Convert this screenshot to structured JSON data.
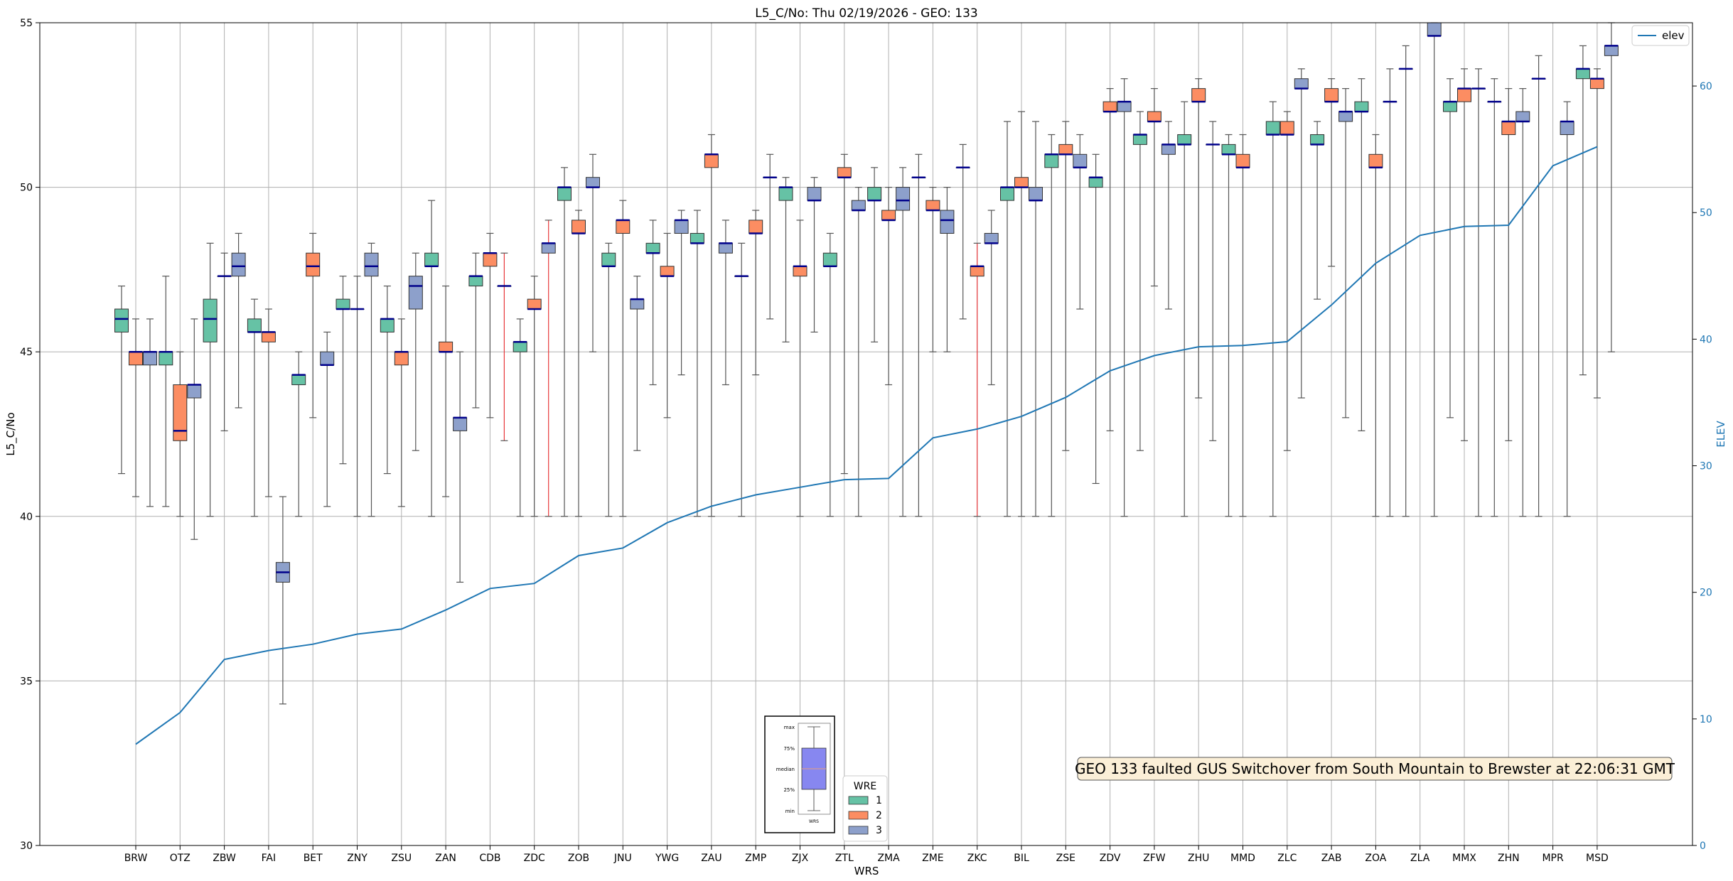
{
  "chart_data": {
    "type": "box",
    "title": "L5_C/No: Thu 02/19/2026 - GEO: 133",
    "xlabel": "WRS",
    "ylabel": "L5_C/No",
    "y2label": "ELEV",
    "ylim": [
      30,
      55
    ],
    "y2lim": [
      0,
      65
    ],
    "yticks": [
      "30",
      "35",
      "40",
      "45",
      "50",
      "55"
    ],
    "y2ticks": [
      "0",
      "10",
      "20",
      "30",
      "40",
      "50",
      "60"
    ],
    "grid": true,
    "categories": [
      "BRW",
      "OTZ",
      "ZBW",
      "FAI",
      "BET",
      "ZNY",
      "ZSU",
      "ZAN",
      "CDB",
      "ZDC",
      "ZOB",
      "JNU",
      "YWG",
      "ZAU",
      "ZMP",
      "ZJX",
      "ZTL",
      "ZMA",
      "ZME",
      "ZKC",
      "BIL",
      "ZSE",
      "ZDV",
      "ZFW",
      "ZHU",
      "MMD",
      "ZLC",
      "ZAB",
      "ZOA",
      "ZLA",
      "MMX",
      "ZHN",
      "MPR",
      "MSD"
    ],
    "wre_colors": {
      "1": "#66c2a5",
      "2": "#fc8d62",
      "3": "#8da0cb"
    },
    "boxes": [
      {
        "site": "BRW",
        "wre": 1,
        "min": 41.3,
        "q1": 45.6,
        "median": 46.0,
        "q3": 46.3,
        "max": 47.0
      },
      {
        "site": "BRW",
        "wre": 2,
        "min": 40.6,
        "q1": 44.6,
        "median": 45.0,
        "q3": 45.0,
        "max": 46.0
      },
      {
        "site": "BRW",
        "wre": 3,
        "min": 40.3,
        "q1": 44.6,
        "median": 45.0,
        "q3": 45.0,
        "max": 46.0
      },
      {
        "site": "OTZ",
        "wre": 1,
        "min": 40.3,
        "q1": 44.6,
        "median": 45.0,
        "q3": 45.0,
        "max": 47.3
      },
      {
        "site": "OTZ",
        "wre": 2,
        "min": 40.0,
        "q1": 42.3,
        "median": 42.6,
        "q3": 44.0,
        "max": 45.0
      },
      {
        "site": "OTZ",
        "wre": 3,
        "min": 39.3,
        "q1": 43.6,
        "median": 44.0,
        "q3": 44.0,
        "max": 46.0
      },
      {
        "site": "ZBW",
        "wre": 1,
        "min": 40.0,
        "q1": 45.3,
        "median": 46.0,
        "q3": 46.6,
        "max": 48.3
      },
      {
        "site": "ZBW",
        "wre": 2,
        "min": 42.6,
        "q1": 47.3,
        "median": 47.3,
        "q3": 47.3,
        "max": 48.0
      },
      {
        "site": "ZBW",
        "wre": 3,
        "min": 43.3,
        "q1": 47.3,
        "median": 47.6,
        "q3": 48.0,
        "max": 48.6
      },
      {
        "site": "FAI",
        "wre": 1,
        "min": 40.0,
        "q1": 45.6,
        "median": 45.6,
        "q3": 46.0,
        "max": 46.6
      },
      {
        "site": "FAI",
        "wre": 2,
        "min": 40.6,
        "q1": 45.3,
        "median": 45.6,
        "q3": 45.6,
        "max": 46.3
      },
      {
        "site": "FAI",
        "wre": 3,
        "min": 34.3,
        "q1": 38.0,
        "median": 38.3,
        "q3": 38.6,
        "max": 40.6
      },
      {
        "site": "BET",
        "wre": 1,
        "min": 40.0,
        "q1": 44.0,
        "median": 44.3,
        "q3": 44.3,
        "max": 45.0
      },
      {
        "site": "BET",
        "wre": 2,
        "min": 43.0,
        "q1": 47.3,
        "median": 47.6,
        "q3": 48.0,
        "max": 48.6
      },
      {
        "site": "BET",
        "wre": 3,
        "min": 40.3,
        "q1": 44.6,
        "median": 44.6,
        "q3": 45.0,
        "max": 45.6
      },
      {
        "site": "ZNY",
        "wre": 1,
        "min": 41.6,
        "q1": 46.3,
        "median": 46.3,
        "q3": 46.6,
        "max": 47.3
      },
      {
        "site": "ZNY",
        "wre": 2,
        "min": 40.0,
        "q1": 46.3,
        "median": 46.3,
        "q3": 46.3,
        "max": 47.3
      },
      {
        "site": "ZNY",
        "wre": 3,
        "min": 40.0,
        "q1": 47.3,
        "median": 47.6,
        "q3": 48.0,
        "max": 48.3
      },
      {
        "site": "ZSU",
        "wre": 1,
        "min": 41.3,
        "q1": 45.6,
        "median": 46.0,
        "q3": 46.0,
        "max": 47.0
      },
      {
        "site": "ZSU",
        "wre": 2,
        "min": 40.3,
        "q1": 44.6,
        "median": 45.0,
        "q3": 45.0,
        "max": 46.0
      },
      {
        "site": "ZSU",
        "wre": 3,
        "min": 42.0,
        "q1": 46.3,
        "median": 47.0,
        "q3": 47.3,
        "max": 48.0
      },
      {
        "site": "ZAN",
        "wre": 1,
        "min": 40.0,
        "q1": 47.6,
        "median": 47.6,
        "q3": 48.0,
        "max": 49.6
      },
      {
        "site": "ZAN",
        "wre": 2,
        "min": 40.6,
        "q1": 45.0,
        "median": 45.0,
        "q3": 45.3,
        "max": 47.0
      },
      {
        "site": "ZAN",
        "wre": 3,
        "min": 38.0,
        "q1": 42.6,
        "median": 43.0,
        "q3": 43.0,
        "max": 45.0
      },
      {
        "site": "CDB",
        "wre": 1,
        "min": 43.3,
        "q1": 47.0,
        "median": 47.3,
        "q3": 47.3,
        "max": 48.0
      },
      {
        "site": "CDB",
        "wre": 2,
        "min": 43.0,
        "q1": 47.6,
        "median": 48.0,
        "q3": 48.0,
        "max": 48.6
      },
      {
        "site": "CDB",
        "wre": 3,
        "min": 42.3,
        "q1": 47.0,
        "median": 47.0,
        "q3": 47.0,
        "max": 48.0,
        "faulted": true
      },
      {
        "site": "ZDC",
        "wre": 1,
        "min": 40.0,
        "q1": 45.0,
        "median": 45.3,
        "q3": 45.3,
        "max": 46.0
      },
      {
        "site": "ZDC",
        "wre": 2,
        "min": 40.0,
        "q1": 46.3,
        "median": 46.3,
        "q3": 46.6,
        "max": 47.3
      },
      {
        "site": "ZDC",
        "wre": 3,
        "min": 40.0,
        "q1": 48.0,
        "median": 48.3,
        "q3": 48.3,
        "max": 49.0,
        "faulted": true
      },
      {
        "site": "ZOB",
        "wre": 1,
        "min": 40.0,
        "q1": 49.6,
        "median": 50.0,
        "q3": 50.0,
        "max": 50.6
      },
      {
        "site": "ZOB",
        "wre": 2,
        "min": 40.0,
        "q1": 48.6,
        "median": 48.6,
        "q3": 49.0,
        "max": 49.3
      },
      {
        "site": "ZOB",
        "wre": 3,
        "min": 45.0,
        "q1": 50.0,
        "median": 50.0,
        "q3": 50.3,
        "max": 51.0
      },
      {
        "site": "JNU",
        "wre": 1,
        "min": 40.0,
        "q1": 47.6,
        "median": 47.6,
        "q3": 48.0,
        "max": 48.3
      },
      {
        "site": "JNU",
        "wre": 2,
        "min": 40.0,
        "q1": 48.6,
        "median": 49.0,
        "q3": 49.0,
        "max": 49.6
      },
      {
        "site": "JNU",
        "wre": 3,
        "min": 42.0,
        "q1": 46.3,
        "median": 46.6,
        "q3": 46.6,
        "max": 47.3
      },
      {
        "site": "YWG",
        "wre": 1,
        "min": 44.0,
        "q1": 48.0,
        "median": 48.0,
        "q3": 48.3,
        "max": 49.0
      },
      {
        "site": "YWG",
        "wre": 2,
        "min": 43.0,
        "q1": 47.3,
        "median": 47.3,
        "q3": 47.6,
        "max": 48.6
      },
      {
        "site": "YWG",
        "wre": 3,
        "min": 44.3,
        "q1": 48.6,
        "median": 49.0,
        "q3": 49.0,
        "max": 49.3
      },
      {
        "site": "ZAU",
        "wre": 1,
        "min": 40.0,
        "q1": 48.3,
        "median": 48.3,
        "q3": 48.6,
        "max": 49.3
      },
      {
        "site": "ZAU",
        "wre": 2,
        "min": 40.0,
        "q1": 50.6,
        "median": 51.0,
        "q3": 51.0,
        "max": 51.6
      },
      {
        "site": "ZAU",
        "wre": 3,
        "min": 44.0,
        "q1": 48.0,
        "median": 48.3,
        "q3": 48.3,
        "max": 49.0
      },
      {
        "site": "ZMP",
        "wre": 1,
        "min": 40.0,
        "q1": 47.3,
        "median": 47.3,
        "q3": 47.3,
        "max": 48.3
      },
      {
        "site": "ZMP",
        "wre": 2,
        "min": 44.3,
        "q1": 48.6,
        "median": 48.6,
        "q3": 49.0,
        "max": 49.3
      },
      {
        "site": "ZMP",
        "wre": 3,
        "min": 46.0,
        "q1": 50.3,
        "median": 50.3,
        "q3": 50.3,
        "max": 51.0
      },
      {
        "site": "ZJX",
        "wre": 1,
        "min": 45.3,
        "q1": 49.6,
        "median": 50.0,
        "q3": 50.0,
        "max": 50.3
      },
      {
        "site": "ZJX",
        "wre": 2,
        "min": 40.0,
        "q1": 47.3,
        "median": 47.6,
        "q3": 47.6,
        "max": 49.0
      },
      {
        "site": "ZJX",
        "wre": 3,
        "min": 45.6,
        "q1": 49.6,
        "median": 49.6,
        "q3": 50.0,
        "max": 50.3
      },
      {
        "site": "ZTL",
        "wre": 1,
        "min": 40.0,
        "q1": 47.6,
        "median": 47.6,
        "q3": 48.0,
        "max": 48.6
      },
      {
        "site": "ZTL",
        "wre": 2,
        "min": 41.3,
        "q1": 50.3,
        "median": 50.3,
        "q3": 50.6,
        "max": 51.0
      },
      {
        "site": "ZTL",
        "wre": 3,
        "min": 40.0,
        "q1": 49.3,
        "median": 49.3,
        "q3": 49.6,
        "max": 50.0
      },
      {
        "site": "ZMA",
        "wre": 1,
        "min": 45.3,
        "q1": 49.6,
        "median": 49.6,
        "q3": 50.0,
        "max": 50.6
      },
      {
        "site": "ZMA",
        "wre": 2,
        "min": 44.0,
        "q1": 49.0,
        "median": 49.0,
        "q3": 49.3,
        "max": 50.0
      },
      {
        "site": "ZMA",
        "wre": 3,
        "min": 40.0,
        "q1": 49.3,
        "median": 49.6,
        "q3": 50.0,
        "max": 50.6
      },
      {
        "site": "ZME",
        "wre": 1,
        "min": 40.0,
        "q1": 50.3,
        "median": 50.3,
        "q3": 50.3,
        "max": 51.0
      },
      {
        "site": "ZME",
        "wre": 2,
        "min": 45.0,
        "q1": 49.3,
        "median": 49.3,
        "q3": 49.6,
        "max": 50.0
      },
      {
        "site": "ZME",
        "wre": 3,
        "min": 45.0,
        "q1": 48.6,
        "median": 49.0,
        "q3": 49.3,
        "max": 50.0
      },
      {
        "site": "ZKC",
        "wre": 1,
        "min": 46.0,
        "q1": 50.6,
        "median": 50.6,
        "q3": 50.6,
        "max": 51.3
      },
      {
        "site": "ZKC",
        "wre": 2,
        "min": 40.0,
        "q1": 47.3,
        "median": 47.6,
        "q3": 47.6,
        "max": 48.3,
        "faulted": true
      },
      {
        "site": "ZKC",
        "wre": 3,
        "min": 44.0,
        "q1": 48.3,
        "median": 48.3,
        "q3": 48.6,
        "max": 49.3
      },
      {
        "site": "BIL",
        "wre": 1,
        "min": 40.0,
        "q1": 49.6,
        "median": 50.0,
        "q3": 50.0,
        "max": 52.0
      },
      {
        "site": "BIL",
        "wre": 2,
        "min": 40.0,
        "q1": 50.0,
        "median": 50.0,
        "q3": 50.3,
        "max": 52.3
      },
      {
        "site": "BIL",
        "wre": 3,
        "min": 40.0,
        "q1": 49.6,
        "median": 49.6,
        "q3": 50.0,
        "max": 52.0
      },
      {
        "site": "ZSE",
        "wre": 1,
        "min": 40.0,
        "q1": 50.6,
        "median": 51.0,
        "q3": 51.0,
        "max": 51.6
      },
      {
        "site": "ZSE",
        "wre": 2,
        "min": 42.0,
        "q1": 51.0,
        "median": 51.0,
        "q3": 51.3,
        "max": 52.0
      },
      {
        "site": "ZSE",
        "wre": 3,
        "min": 46.3,
        "q1": 50.6,
        "median": 50.6,
        "q3": 51.0,
        "max": 51.6
      },
      {
        "site": "ZDV",
        "wre": 1,
        "min": 41.0,
        "q1": 50.0,
        "median": 50.3,
        "q3": 50.3,
        "max": 51.0
      },
      {
        "site": "ZDV",
        "wre": 2,
        "min": 42.6,
        "q1": 52.3,
        "median": 52.3,
        "q3": 52.6,
        "max": 53.0
      },
      {
        "site": "ZDV",
        "wre": 3,
        "min": 40.0,
        "q1": 52.3,
        "median": 52.6,
        "q3": 52.6,
        "max": 53.3
      },
      {
        "site": "ZFW",
        "wre": 1,
        "min": 42.0,
        "q1": 51.3,
        "median": 51.6,
        "q3": 51.6,
        "max": 52.3
      },
      {
        "site": "ZFW",
        "wre": 2,
        "min": 47.0,
        "q1": 52.0,
        "median": 52.0,
        "q3": 52.3,
        "max": 53.0
      },
      {
        "site": "ZFW",
        "wre": 3,
        "min": 46.3,
        "q1": 51.0,
        "median": 51.3,
        "q3": 51.3,
        "max": 52.0
      },
      {
        "site": "ZHU",
        "wre": 1,
        "min": 40.0,
        "q1": 51.3,
        "median": 51.3,
        "q3": 51.6,
        "max": 52.6
      },
      {
        "site": "ZHU",
        "wre": 2,
        "min": 43.6,
        "q1": 52.6,
        "median": 52.6,
        "q3": 53.0,
        "max": 53.3
      },
      {
        "site": "ZHU",
        "wre": 3,
        "min": 42.3,
        "q1": 51.3,
        "median": 51.3,
        "q3": 51.3,
        "max": 52.0
      },
      {
        "site": "MMD",
        "wre": 1,
        "min": 40.0,
        "q1": 51.0,
        "median": 51.0,
        "q3": 51.3,
        "max": 51.6
      },
      {
        "site": "MMD",
        "wre": 2,
        "min": 40.0,
        "q1": 50.6,
        "median": 50.6,
        "q3": 51.0,
        "max": 51.6
      },
      {
        "site": "ZLC",
        "wre": 1,
        "min": 40.0,
        "q1": 51.6,
        "median": 51.6,
        "q3": 52.0,
        "max": 52.6
      },
      {
        "site": "ZLC",
        "wre": 2,
        "min": 42.0,
        "q1": 51.6,
        "median": 51.6,
        "q3": 52.0,
        "max": 52.3
      },
      {
        "site": "ZLC",
        "wre": 3,
        "min": 43.6,
        "q1": 53.0,
        "median": 53.0,
        "q3": 53.3,
        "max": 53.6
      },
      {
        "site": "ZAB",
        "wre": 1,
        "min": 46.6,
        "q1": 51.3,
        "median": 51.3,
        "q3": 51.6,
        "max": 52.0
      },
      {
        "site": "ZAB",
        "wre": 2,
        "min": 47.6,
        "q1": 52.6,
        "median": 52.6,
        "q3": 53.0,
        "max": 53.3
      },
      {
        "site": "ZAB",
        "wre": 3,
        "min": 43.0,
        "q1": 52.0,
        "median": 52.3,
        "q3": 52.3,
        "max": 53.0
      },
      {
        "site": "ZOA",
        "wre": 1,
        "min": 42.6,
        "q1": 52.3,
        "median": 52.3,
        "q3": 52.6,
        "max": 53.3
      },
      {
        "site": "ZOA",
        "wre": 2,
        "min": 40.0,
        "q1": 50.6,
        "median": 50.6,
        "q3": 51.0,
        "max": 51.6
      },
      {
        "site": "ZOA",
        "wre": 3,
        "min": 40.0,
        "q1": 52.6,
        "median": 52.6,
        "q3": 52.6,
        "max": 53.6
      },
      {
        "site": "ZLA",
        "wre": 1,
        "min": 40.0,
        "q1": 53.6,
        "median": 53.6,
        "q3": 53.6,
        "max": 54.3
      },
      {
        "site": "ZLA",
        "wre": 3,
        "min": 40.0,
        "q1": 54.6,
        "median": 54.6,
        "q3": 55.0,
        "max": 55.0
      },
      {
        "site": "MMX",
        "wre": 1,
        "min": 43.0,
        "q1": 52.3,
        "median": 52.6,
        "q3": 52.6,
        "max": 53.3
      },
      {
        "site": "MMX",
        "wre": 2,
        "min": 42.3,
        "q1": 52.6,
        "median": 53.0,
        "q3": 53.0,
        "max": 53.6
      },
      {
        "site": "MMX",
        "wre": 3,
        "min": 40.0,
        "q1": 53.0,
        "median": 53.0,
        "q3": 53.0,
        "max": 53.6
      },
      {
        "site": "ZHN",
        "wre": 1,
        "min": 40.0,
        "q1": 52.6,
        "median": 52.6,
        "q3": 52.6,
        "max": 53.3
      },
      {
        "site": "ZHN",
        "wre": 2,
        "min": 42.3,
        "q1": 51.6,
        "median": 52.0,
        "q3": 52.0,
        "max": 53.0
      },
      {
        "site": "ZHN",
        "wre": 3,
        "min": 40.0,
        "q1": 52.0,
        "median": 52.0,
        "q3": 52.3,
        "max": 53.0
      },
      {
        "site": "MPR",
        "wre": 1,
        "min": 40.0,
        "q1": 53.3,
        "median": 53.3,
        "q3": 53.3,
        "max": 54.0
      },
      {
        "site": "MPR",
        "wre": 3,
        "min": 40.0,
        "q1": 51.6,
        "median": 52.0,
        "q3": 52.0,
        "max": 52.6
      },
      {
        "site": "MSD",
        "wre": 1,
        "min": 44.3,
        "q1": 53.3,
        "median": 53.6,
        "q3": 53.6,
        "max": 54.3
      },
      {
        "site": "MSD",
        "wre": 2,
        "min": 43.6,
        "q1": 53.0,
        "median": 53.3,
        "q3": 53.3,
        "max": 53.6
      },
      {
        "site": "MSD",
        "wre": 3,
        "min": 45.0,
        "q1": 54.0,
        "median": 54.3,
        "q3": 54.3,
        "max": 55.0
      }
    ],
    "elev_series": {
      "name": "elev",
      "values": [
        8.0,
        10.5,
        14.7,
        15.4,
        15.9,
        16.7,
        17.1,
        18.6,
        20.3,
        20.7,
        22.9,
        23.5,
        25.5,
        26.8,
        27.7,
        28.3,
        28.9,
        29.0,
        32.2,
        32.9,
        33.9,
        35.4,
        37.5,
        38.7,
        39.4,
        39.5,
        39.8,
        42.7,
        46.0,
        48.2,
        48.9,
        49.0,
        53.7,
        55.2
      ],
      "color": "#1f77b4"
    },
    "legend_elev": {
      "label": "elev",
      "placement": "top-right"
    },
    "legend_wre": {
      "title": "WRE",
      "items": [
        "1",
        "2",
        "3"
      ],
      "placement": "bottom-center"
    },
    "box_key": {
      "labels": [
        "max",
        "75%",
        "median",
        "25%",
        "min"
      ],
      "xlabel": "WRS"
    },
    "annotation": {
      "text": "GEO 133 faulted GUS Switchover from South Mountain to Brewster at 22:06:31 GMT",
      "bg": "#fbefd7",
      "placement": "bottom-right"
    }
  }
}
